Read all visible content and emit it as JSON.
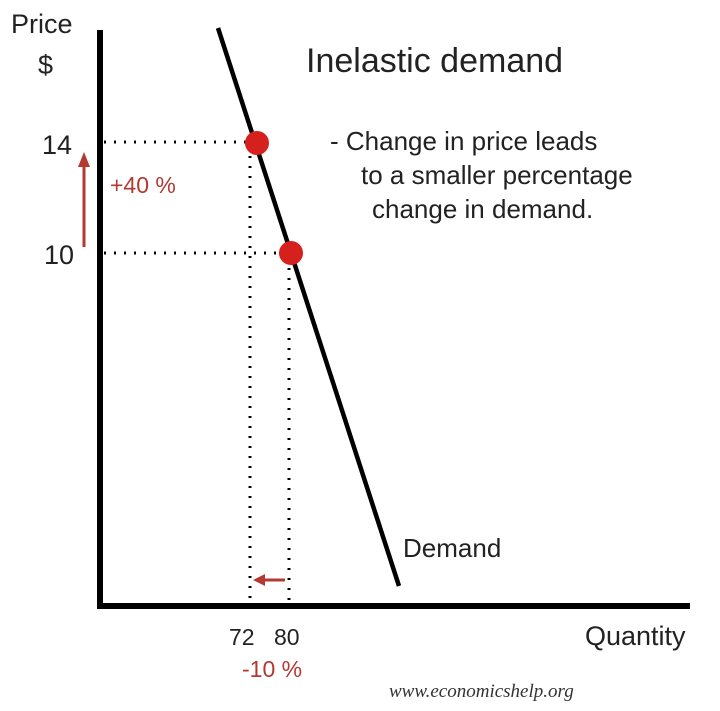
{
  "chart_data": {
    "type": "line",
    "title": "Inelastic demand",
    "xlabel": "Quantity",
    "ylabel": "Price",
    "ylabel_unit": "$",
    "annotation_lines": [
      "- Change in price leads",
      "to a smaller percentage",
      "change in demand."
    ],
    "series": [
      {
        "name": "Demand"
      }
    ],
    "points": [
      {
        "x": 72,
        "y": 14
      },
      {
        "x": 80,
        "y": 10
      }
    ],
    "x_ticks": [
      "72",
      "80"
    ],
    "y_ticks": [
      "14",
      "10"
    ],
    "price_change_label": "+40 %",
    "quantity_change_label": "-10 %",
    "grid": false,
    "point_color": "#d6201e",
    "annotation_color": "#b23a32",
    "line_color": "#000000"
  },
  "footer": {
    "source": "www.economicshelp.org"
  }
}
